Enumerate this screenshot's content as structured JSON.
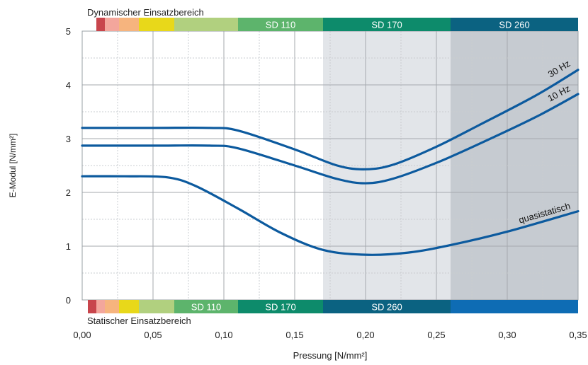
{
  "chart_data": {
    "type": "line",
    "xlabel": "Pressung [N/mm²]",
    "ylabel": "E-Modul [N/mm²]",
    "xlim": [
      0,
      0.35
    ],
    "ylim": [
      0,
      5
    ],
    "x_ticks": [
      "0,00",
      "0,05",
      "0,10",
      "0,15",
      "0,20",
      "0,25",
      "0,30",
      "0,35"
    ],
    "y_ticks": [
      "0",
      "1",
      "2",
      "3",
      "4",
      "5"
    ],
    "grid": true,
    "series": [
      {
        "name": "30 Hz",
        "x": [
          0,
          0.05,
          0.09,
          0.11,
          0.15,
          0.18,
          0.2,
          0.22,
          0.25,
          0.28,
          0.32,
          0.35
        ],
        "y": [
          3.2,
          3.2,
          3.2,
          3.15,
          2.8,
          2.5,
          2.43,
          2.52,
          2.85,
          3.25,
          3.8,
          4.28
        ]
      },
      {
        "name": "10 Hz",
        "x": [
          0,
          0.05,
          0.09,
          0.11,
          0.15,
          0.18,
          0.2,
          0.22,
          0.25,
          0.28,
          0.32,
          0.35
        ],
        "y": [
          2.87,
          2.87,
          2.87,
          2.82,
          2.5,
          2.25,
          2.17,
          2.26,
          2.55,
          2.9,
          3.4,
          3.83
        ]
      },
      {
        "name": "quasistatisch",
        "x": [
          0,
          0.03,
          0.06,
          0.08,
          0.11,
          0.14,
          0.17,
          0.2,
          0.23,
          0.26,
          0.3,
          0.35
        ],
        "y": [
          2.3,
          2.3,
          2.28,
          2.12,
          1.7,
          1.25,
          0.93,
          0.84,
          0.88,
          1.02,
          1.27,
          1.65
        ]
      }
    ],
    "shaded_regions": [
      {
        "from": 0.17,
        "to": 0.26,
        "color": "#e2e5e9"
      },
      {
        "from": 0.26,
        "to": 0.35,
        "color": "#c6cbd1"
      }
    ],
    "line_color": "#0c5a9e",
    "dynamic_range": {
      "title": "Dynamischer Einsatzbereich",
      "segments": [
        {
          "from": 0.01,
          "to": 0.016,
          "color": "#c8454c",
          "label": ""
        },
        {
          "from": 0.016,
          "to": 0.026,
          "color": "#f3a69c",
          "label": ""
        },
        {
          "from": 0.026,
          "to": 0.04,
          "color": "#f6b47e",
          "label": ""
        },
        {
          "from": 0.04,
          "to": 0.065,
          "color": "#e8d81a",
          "label": ""
        },
        {
          "from": 0.065,
          "to": 0.11,
          "color": "#b1d07f",
          "label": ""
        },
        {
          "from": 0.11,
          "to": 0.17,
          "color": "#5db46c",
          "label": "SD 110"
        },
        {
          "from": 0.17,
          "to": 0.26,
          "color": "#0d8b6b",
          "label": "SD 170"
        },
        {
          "from": 0.26,
          "to": 0.35,
          "color": "#0b6281",
          "label": "SD 260"
        }
      ]
    },
    "static_range": {
      "title": "Statischer Einsatzbereich",
      "segments": [
        {
          "from": 0.004,
          "to": 0.01,
          "color": "#c8454c",
          "label": ""
        },
        {
          "from": 0.01,
          "to": 0.016,
          "color": "#f3a69c",
          "label": ""
        },
        {
          "from": 0.016,
          "to": 0.026,
          "color": "#f6b47e",
          "label": ""
        },
        {
          "from": 0.026,
          "to": 0.04,
          "color": "#e8d81a",
          "label": ""
        },
        {
          "from": 0.04,
          "to": 0.065,
          "color": "#b1d07f",
          "label": ""
        },
        {
          "from": 0.065,
          "to": 0.11,
          "color": "#5db46c",
          "label": "SD 110"
        },
        {
          "from": 0.11,
          "to": 0.17,
          "color": "#0d8b6b",
          "label": "SD 170"
        },
        {
          "from": 0.17,
          "to": 0.26,
          "color": "#0b6281",
          "label": "SD 260"
        },
        {
          "from": 0.26,
          "to": 0.35,
          "color": "#0e6cb4",
          "label": ""
        }
      ]
    }
  }
}
